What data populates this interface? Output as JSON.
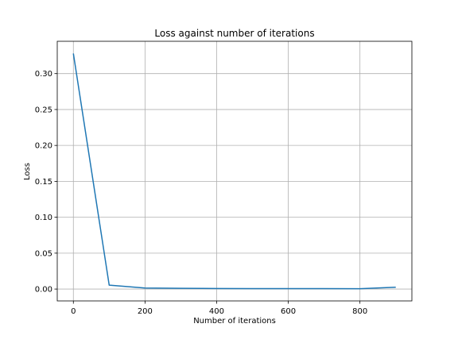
{
  "chart_data": {
    "type": "line",
    "title": "Loss against number of iterations",
    "xlabel": "Number of iterations",
    "ylabel": "Loss",
    "xlim": [
      -45,
      945
    ],
    "ylim": [
      -0.0165,
      0.345
    ],
    "xticks": [
      0,
      200,
      400,
      600,
      800
    ],
    "xtick_labels": [
      "0",
      "200",
      "400",
      "600",
      "800"
    ],
    "yticks": [
      0.0,
      0.05,
      0.1,
      0.15,
      0.2,
      0.25,
      0.3
    ],
    "ytick_labels": [
      "0.00",
      "0.05",
      "0.10",
      "0.15",
      "0.20",
      "0.25",
      "0.30"
    ],
    "grid": true,
    "series": [
      {
        "color": "#1f77b4",
        "x": [
          0,
          100,
          200,
          300,
          400,
          500,
          600,
          700,
          800,
          900
        ],
        "y": [
          0.328,
          0.0055,
          0.0015,
          0.001,
          0.0008,
          0.0007,
          0.0006,
          0.0006,
          0.0005,
          0.0025
        ]
      }
    ]
  }
}
